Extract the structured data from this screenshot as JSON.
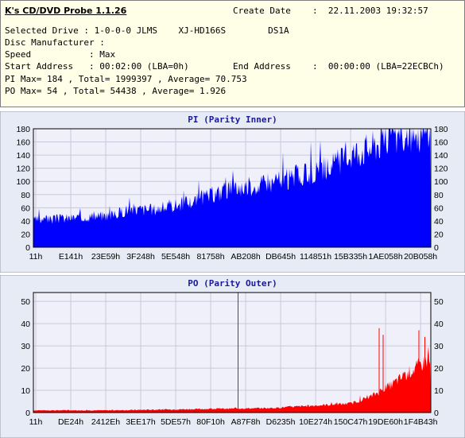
{
  "header": {
    "app_title": "K's CD/DVD Probe 1.1.26",
    "create_date_label": "Create Date",
    "create_date_value": ":  22.11.2003 19:32:57",
    "drive_line": "Selected Drive : 1-0-0-0 JLMS    XJ-HD166S        DS1A",
    "manufacturer_line": "Disc Manufacturer :",
    "speed_line": "Speed           : Max",
    "start_line": "Start Address   : 00:02:00 (LBA=0h)",
    "end_label": "End Address",
    "end_value": ":  00:00:00 (LBA=22ECBCh)",
    "pi_stats": "PI Max= 184 , Total= 1999397 , Average= 70.753",
    "po_stats": "PO Max= 54 , Total= 54438 , Average= 1.926"
  },
  "colors": {
    "pi": "#0000ff",
    "po": "#ff0000",
    "plot_bg": "#f0f0fa",
    "grid": "#c8c8dc",
    "panel_bg": "#e6ebf5"
  },
  "chart_data": [
    {
      "type": "area",
      "title": "PI (Parity Inner)",
      "x_tick_labels": [
        "11h",
        "E141h",
        "23E59h",
        "3F248h",
        "5E548h",
        "81758h",
        "AB208h",
        "DB645h",
        "114851h",
        "15B335h",
        "1AE058h",
        "20B058h"
      ],
      "ylim": [
        0,
        180
      ],
      "y_ticks": [
        0,
        20,
        40,
        60,
        80,
        100,
        120,
        140,
        160,
        180
      ],
      "y_ticks_right": true,
      "grid": true,
      "x": [
        0,
        0.1,
        0.2,
        0.24,
        0.3,
        0.4,
        0.5,
        0.6,
        0.7,
        0.75,
        0.8,
        0.85,
        0.9,
        1.0
      ],
      "values": [
        40,
        44,
        48,
        57,
        56,
        68,
        88,
        96,
        110,
        120,
        140,
        150,
        165,
        172
      ],
      "max": 184
    },
    {
      "type": "area",
      "title": "PO (Parity Outer)",
      "x_tick_labels": [
        "11h",
        "DE24h",
        "2412Eh",
        "3EE17h",
        "5DE57h",
        "80F10h",
        "A87F8h",
        "D6235h",
        "10E274h",
        "150C47h",
        "19DE60h",
        "1F4B43h"
      ],
      "ylim": [
        0,
        54
      ],
      "y_ticks": [
        0,
        10,
        20,
        30,
        40,
        50
      ],
      "y_ticks_right": true,
      "grid": true,
      "x": [
        0,
        0.2,
        0.4,
        0.6,
        0.7,
        0.8,
        0.85,
        0.9,
        0.95,
        1.0
      ],
      "values": [
        1,
        1,
        1.5,
        2,
        3,
        4,
        7,
        12,
        18,
        24
      ],
      "spikes": [
        {
          "x": 0.515,
          "value": 54
        },
        {
          "x": 0.87,
          "value": 38
        },
        {
          "x": 0.88,
          "value": 35
        },
        {
          "x": 0.97,
          "value": 37
        },
        {
          "x": 0.985,
          "value": 34
        }
      ],
      "max": 54
    }
  ]
}
